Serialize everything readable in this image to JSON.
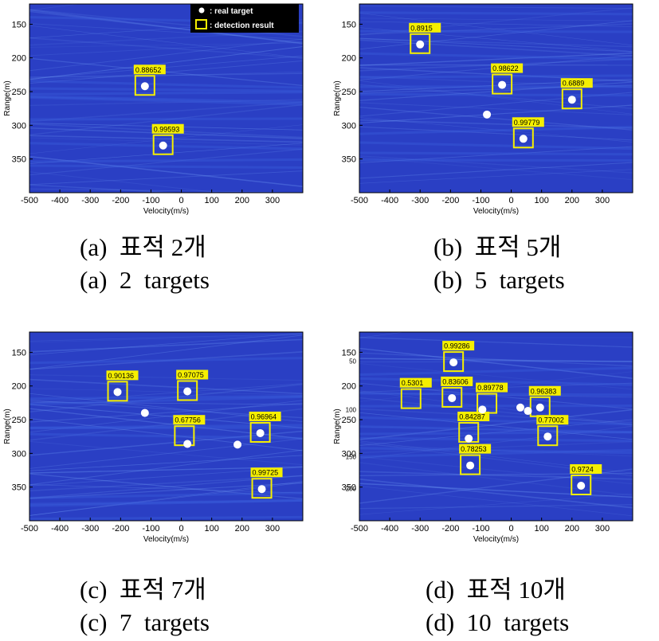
{
  "chart_data": [
    {
      "type": "scatter",
      "xlabel": "Velocity(m/s)",
      "ylabel": "Range(m)",
      "xlim": [
        -500,
        400
      ],
      "ylim": [
        400,
        120
      ],
      "xticks": [
        -500,
        -400,
        -300,
        -200,
        -100,
        0,
        100,
        200,
        300
      ],
      "yticks": [
        150,
        200,
        250,
        300,
        350
      ],
      "extra_yticks": [],
      "legend": {
        "real_label": ": real target",
        "det_label": ": detection result",
        "position": "top-right"
      },
      "real_targets": [
        {
          "x": -120,
          "y": 242
        },
        {
          "x": -60,
          "y": 330
        }
      ],
      "detections": [
        {
          "x": -120,
          "y": 242,
          "score": "0.88652"
        },
        {
          "x": -60,
          "y": 330,
          "score": "0.99593"
        }
      ],
      "caption_kr": "(a)  표적 2개",
      "caption_en": "(a)  2  targets"
    },
    {
      "type": "scatter",
      "xlabel": "Velocity(m/s)",
      "ylabel": "Range(m)",
      "xlim": [
        -500,
        400
      ],
      "ylim": [
        400,
        120
      ],
      "xticks": [
        -500,
        -400,
        -300,
        -200,
        -100,
        0,
        100,
        200,
        300
      ],
      "yticks": [
        150,
        200,
        250,
        300,
        350
      ],
      "extra_yticks": [],
      "legend": null,
      "real_targets": [
        {
          "x": -300,
          "y": 180
        },
        {
          "x": -30,
          "y": 240
        },
        {
          "x": 200,
          "y": 262
        },
        {
          "x": -80,
          "y": 284
        },
        {
          "x": 40,
          "y": 320
        }
      ],
      "detections": [
        {
          "x": -300,
          "y": 180,
          "score": "0.8915"
        },
        {
          "x": -30,
          "y": 240,
          "score": "0.98622"
        },
        {
          "x": 200,
          "y": 262,
          "score": "0.6889"
        },
        {
          "x": 40,
          "y": 320,
          "score": "0.99779"
        }
      ],
      "caption_kr": "(b)  표적 5개",
      "caption_en": "(b)  5  targets"
    },
    {
      "type": "scatter",
      "xlabel": "Velocity(m/s)",
      "ylabel": "Range(m)",
      "xlim": [
        -500,
        400
      ],
      "ylim": [
        400,
        120
      ],
      "xticks": [
        -500,
        -400,
        -300,
        -200,
        -100,
        0,
        100,
        200,
        300
      ],
      "yticks": [
        150,
        200,
        250,
        300,
        350
      ],
      "extra_yticks": [],
      "legend": null,
      "real_targets": [
        {
          "x": -210,
          "y": 209
        },
        {
          "x": 20,
          "y": 208
        },
        {
          "x": -120,
          "y": 240
        },
        {
          "x": 20,
          "y": 286
        },
        {
          "x": 185,
          "y": 287
        },
        {
          "x": 260,
          "y": 270
        },
        {
          "x": 265,
          "y": 353
        }
      ],
      "detections": [
        {
          "x": -210,
          "y": 209,
          "score": "0.90136"
        },
        {
          "x": 20,
          "y": 208,
          "score": "0.97075"
        },
        {
          "x": 10,
          "y": 275,
          "score": "0.67756"
        },
        {
          "x": 260,
          "y": 270,
          "score": "0.96964"
        },
        {
          "x": 265,
          "y": 353,
          "score": "0.99725"
        }
      ],
      "caption_kr": "(c)  표적 7개",
      "caption_en": "(c)  7  targets"
    },
    {
      "type": "scatter",
      "xlabel": "Velocity(m/s)",
      "ylabel": "Range(m)",
      "xlim": [
        -500,
        400
      ],
      "ylim": [
        400,
        120
      ],
      "xticks": [
        -500,
        -400,
        -300,
        -200,
        -100,
        0,
        100,
        200,
        300
      ],
      "yticks": [
        150,
        200,
        250,
        300,
        350
      ],
      "extra_yticks": [
        {
          "value": 163,
          "label": "50"
        },
        {
          "value": 235,
          "label": "100"
        },
        {
          "value": 305,
          "label": "150"
        },
        {
          "value": 352,
          "label": "200"
        }
      ],
      "legend": null,
      "real_targets": [
        {
          "x": -190,
          "y": 165
        },
        {
          "x": -195,
          "y": 218
        },
        {
          "x": -95,
          "y": 235
        },
        {
          "x": 30,
          "y": 232
        },
        {
          "x": 55,
          "y": 237
        },
        {
          "x": 95,
          "y": 232
        },
        {
          "x": 120,
          "y": 275
        },
        {
          "x": -140,
          "y": 278
        },
        {
          "x": -135,
          "y": 318
        },
        {
          "x": 230,
          "y": 348
        }
      ],
      "detections": [
        {
          "x": -190,
          "y": 165,
          "score": "0.99286"
        },
        {
          "x": -195,
          "y": 218,
          "score": "0.83606"
        },
        {
          "x": -330,
          "y": 220,
          "score": "0.5301"
        },
        {
          "x": -80,
          "y": 227,
          "score": "0.89778"
        },
        {
          "x": 95,
          "y": 232,
          "score": "0.96383"
        },
        {
          "x": 120,
          "y": 275,
          "score": "0.77002"
        },
        {
          "x": -140,
          "y": 270,
          "score": "0.84287"
        },
        {
          "x": -135,
          "y": 318,
          "score": "0.78253"
        },
        {
          "x": 230,
          "y": 348,
          "score": "0.9724"
        }
      ],
      "caption_kr": "(d)  표적 10개",
      "caption_en": "(d)  10  targets"
    }
  ]
}
